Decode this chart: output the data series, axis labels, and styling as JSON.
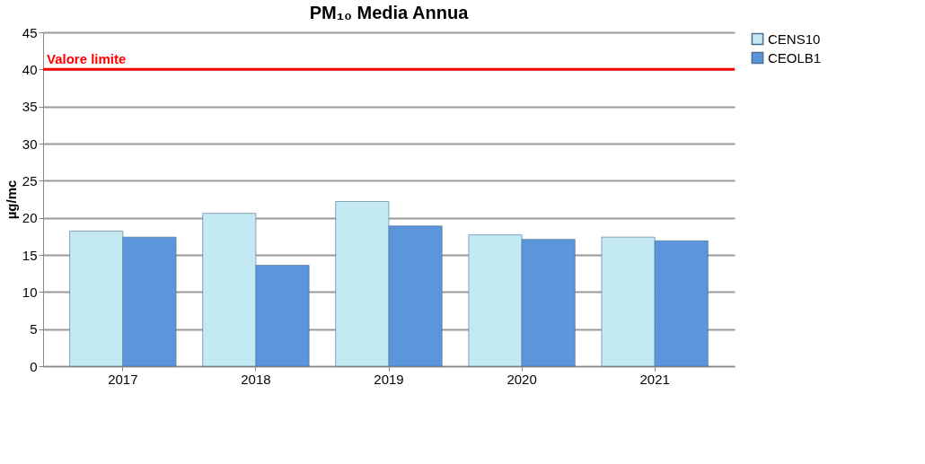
{
  "chart_data": {
    "type": "bar",
    "title": "PM₁₀ Media Annua",
    "ylabel": "µg/mc",
    "categories": [
      "2017",
      "2018",
      "2019",
      "2020",
      "2021"
    ],
    "series": [
      {
        "name": "CENS10",
        "color": "#c3eaf2",
        "values": [
          18.2,
          20.6,
          22.2,
          17.7,
          17.4
        ]
      },
      {
        "name": "CEOLB1",
        "color": "#5b96dc",
        "values": [
          17.4,
          13.6,
          18.9,
          17.1,
          16.9
        ]
      }
    ],
    "ylim": [
      0,
      45
    ],
    "yticks": [
      0,
      5,
      10,
      15,
      20,
      25,
      30,
      35,
      40,
      45
    ],
    "grid": "y",
    "legend": "right",
    "ref_lines": [
      {
        "axis": "y",
        "value": 40,
        "label": "Valore limite",
        "color": "#ff0000"
      }
    ]
  }
}
